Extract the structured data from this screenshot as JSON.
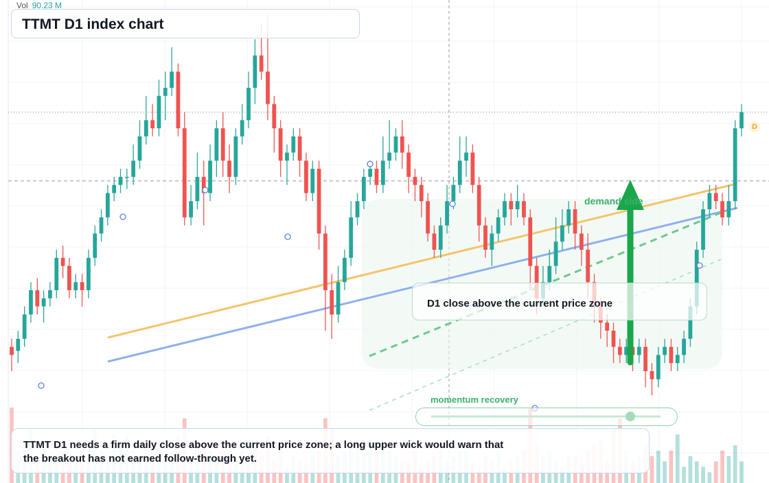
{
  "header": {
    "vol_label": "Vol",
    "vol_value": "90.23 M"
  },
  "title": "TTMT D1 index chart",
  "annotations": {
    "close_zone": "D1 close above the current price zone",
    "demand_side": "demand side",
    "momentum": "momentum recovery",
    "d_marker": "D",
    "note": "TTMT D1 needs a firm daily close above the current price zone; a long upper wick would warn that the breakout has not earned follow-through yet."
  },
  "colors": {
    "up": "#26a69a",
    "down": "#ef5350",
    "trend_orange": "#f5c36a",
    "trend_blue": "#8fb0ee",
    "demand_green": "#1aa64a",
    "dash_green": "#6cc98f"
  },
  "chart_data": {
    "type": "candlestick",
    "timeframe": "D1",
    "symbol": "TTMT",
    "ylim": [
      0,
      100
    ],
    "grid": true,
    "current_price_line": 57,
    "resistance_dotted": 74,
    "candles": [
      [
        16,
        14,
        18,
        10
      ],
      [
        15,
        18,
        20,
        12
      ],
      [
        18,
        24,
        26,
        16
      ],
      [
        24,
        30,
        32,
        22
      ],
      [
        30,
        26,
        33,
        24
      ],
      [
        26,
        28,
        30,
        22
      ],
      [
        28,
        30,
        32,
        26
      ],
      [
        30,
        38,
        40,
        28
      ],
      [
        38,
        36,
        41,
        33
      ],
      [
        36,
        30,
        38,
        28
      ],
      [
        30,
        32,
        34,
        28
      ],
      [
        32,
        30,
        34,
        26
      ],
      [
        30,
        38,
        40,
        28
      ],
      [
        38,
        44,
        46,
        36
      ],
      [
        44,
        48,
        50,
        42
      ],
      [
        48,
        54,
        56,
        46
      ],
      [
        54,
        56,
        58,
        52
      ],
      [
        56,
        58,
        60,
        54
      ],
      [
        58,
        58,
        60,
        55
      ],
      [
        58,
        62,
        66,
        56
      ],
      [
        62,
        68,
        72,
        60
      ],
      [
        68,
        72,
        78,
        66
      ],
      [
        72,
        70,
        76,
        68
      ],
      [
        70,
        78,
        82,
        68
      ],
      [
        78,
        80,
        84,
        72
      ],
      [
        80,
        84,
        90,
        78
      ],
      [
        84,
        70,
        86,
        68
      ],
      [
        70,
        48,
        74,
        46
      ],
      [
        48,
        52,
        56,
        46
      ],
      [
        52,
        58,
        64,
        50
      ],
      [
        58,
        54,
        62,
        46
      ],
      [
        54,
        62,
        66,
        52
      ],
      [
        62,
        70,
        72,
        58
      ],
      [
        70,
        62,
        74,
        58
      ],
      [
        62,
        58,
        66,
        54
      ],
      [
        58,
        68,
        70,
        56
      ],
      [
        68,
        72,
        76,
        66
      ],
      [
        72,
        80,
        84,
        70
      ],
      [
        80,
        88,
        92,
        76
      ],
      [
        88,
        84,
        96,
        82
      ],
      [
        84,
        76,
        98,
        72
      ],
      [
        76,
        70,
        78,
        64
      ],
      [
        70,
        62,
        72,
        58
      ],
      [
        62,
        64,
        66,
        56
      ],
      [
        64,
        68,
        70,
        62
      ],
      [
        68,
        62,
        70,
        58
      ],
      [
        62,
        54,
        64,
        52
      ],
      [
        54,
        60,
        62,
        52
      ],
      [
        60,
        44,
        62,
        40
      ],
      [
        44,
        30,
        46,
        20
      ],
      [
        30,
        24,
        34,
        18
      ],
      [
        24,
        32,
        36,
        22
      ],
      [
        32,
        38,
        40,
        30
      ],
      [
        38,
        48,
        52,
        36
      ],
      [
        48,
        52,
        54,
        46
      ],
      [
        52,
        58,
        60,
        50
      ],
      [
        58,
        60,
        62,
        56
      ],
      [
        60,
        56,
        62,
        54
      ],
      [
        56,
        62,
        68,
        54
      ],
      [
        62,
        64,
        72,
        60
      ],
      [
        64,
        68,
        70,
        62
      ],
      [
        68,
        64,
        72,
        60
      ],
      [
        64,
        58,
        66,
        54
      ],
      [
        58,
        56,
        60,
        52
      ],
      [
        56,
        52,
        58,
        48
      ],
      [
        52,
        44,
        54,
        42
      ],
      [
        44,
        40,
        46,
        38
      ],
      [
        40,
        46,
        48,
        38
      ],
      [
        46,
        52,
        56,
        44
      ],
      [
        52,
        56,
        58,
        50
      ],
      [
        56,
        62,
        68,
        54
      ],
      [
        62,
        64,
        68,
        58
      ],
      [
        64,
        56,
        66,
        54
      ],
      [
        56,
        46,
        58,
        42
      ],
      [
        46,
        40,
        48,
        38
      ],
      [
        40,
        44,
        46,
        36
      ],
      [
        44,
        48,
        50,
        42
      ],
      [
        48,
        52,
        54,
        46
      ],
      [
        52,
        50,
        54,
        46
      ],
      [
        50,
        52,
        56,
        48
      ],
      [
        52,
        48,
        54,
        46
      ],
      [
        48,
        36,
        50,
        30
      ],
      [
        36,
        28,
        38,
        24
      ],
      [
        28,
        32,
        36,
        26
      ],
      [
        32,
        36,
        40,
        30
      ],
      [
        36,
        42,
        48,
        34
      ],
      [
        42,
        46,
        50,
        40
      ],
      [
        46,
        50,
        52,
        44
      ],
      [
        50,
        44,
        52,
        40
      ],
      [
        44,
        40,
        46,
        36
      ],
      [
        40,
        32,
        44,
        28
      ],
      [
        32,
        26,
        34,
        22
      ],
      [
        26,
        22,
        28,
        18
      ],
      [
        22,
        20,
        24,
        16
      ],
      [
        20,
        16,
        22,
        12
      ],
      [
        16,
        14,
        18,
        12
      ],
      [
        14,
        16,
        18,
        12
      ],
      [
        16,
        14,
        18,
        10
      ],
      [
        14,
        16,
        18,
        12
      ],
      [
        16,
        10,
        18,
        6
      ],
      [
        10,
        8,
        12,
        4
      ],
      [
        8,
        14,
        16,
        6
      ],
      [
        14,
        16,
        18,
        12
      ],
      [
        16,
        12,
        18,
        10
      ],
      [
        12,
        14,
        16,
        10
      ],
      [
        14,
        18,
        20,
        12
      ],
      [
        18,
        26,
        28,
        16
      ],
      [
        26,
        40,
        42,
        24
      ],
      [
        40,
        50,
        52,
        38
      ],
      [
        50,
        54,
        56,
        48
      ],
      [
        54,
        52,
        56,
        50
      ],
      [
        52,
        48,
        54,
        46
      ],
      [
        48,
        52,
        56,
        46
      ],
      [
        52,
        70,
        72,
        50
      ],
      [
        70,
        74,
        76,
        68
      ]
    ],
    "volume": [
      14,
      6,
      8,
      10,
      4,
      6,
      5,
      5,
      6,
      4,
      5,
      6,
      8,
      10,
      6,
      5,
      9,
      7,
      9,
      6,
      5,
      5,
      4,
      8,
      5,
      6,
      9,
      12,
      4,
      6,
      7,
      6,
      5,
      6,
      4,
      5,
      6,
      4,
      7,
      5,
      9,
      4,
      6,
      3,
      5,
      4,
      4,
      5,
      6,
      12,
      10,
      5,
      6,
      7,
      8,
      5,
      6,
      5,
      7,
      6,
      5,
      4,
      4,
      6,
      3,
      4,
      5,
      8,
      4,
      5,
      6,
      6,
      4,
      3,
      5,
      4,
      6,
      3,
      4,
      5,
      6,
      14,
      7,
      5,
      6,
      4,
      3,
      5,
      5,
      4,
      6,
      7,
      8,
      4,
      10,
      12,
      6,
      4,
      5,
      7,
      5,
      6,
      4,
      6,
      9,
      3,
      5,
      4,
      3,
      2,
      4,
      6,
      5,
      7,
      4
    ]
  }
}
